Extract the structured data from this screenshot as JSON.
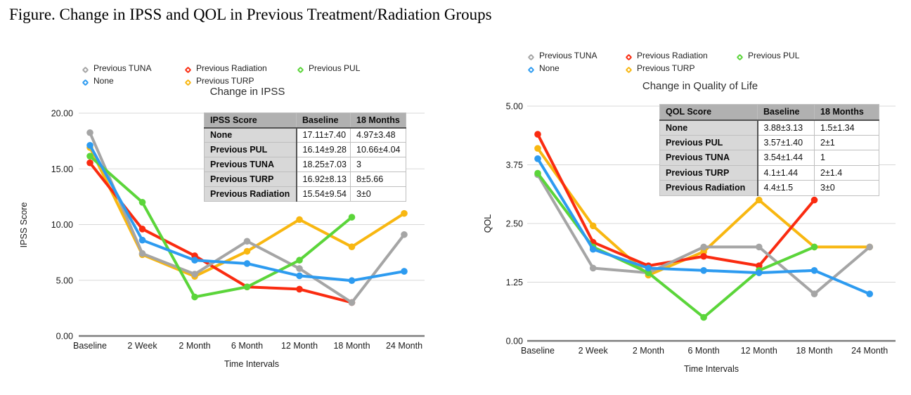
{
  "figure_title": "Figure. Change in IPSS and QOL in Previous Treatment/Radiation Groups",
  "colors": {
    "none_blue": "#2D9BF0",
    "previous_turp_orange": "#F8B711",
    "previous_pul_green": "#5BD53A",
    "previous_radiation_red": "#FA2B10",
    "previous_tuna_gray": "#A5A5A5",
    "gridline": "#D8D8D8",
    "axis": "#7D7D7D",
    "table_header_bg": "#B1B1B1",
    "table_label_bg": "#D8D8D8"
  },
  "chart_data": [
    {
      "type": "line",
      "title": "Change in IPSS",
      "xlabel": "Time Intervals",
      "ylabel": "IPSS Score",
      "categories": [
        "Baseline",
        "2 Week",
        "2 Month",
        "6 Month",
        "12 Month",
        "18 Month",
        "24 Month"
      ],
      "ylim": [
        0,
        20
      ],
      "y_ticks": [
        {
          "value": 20,
          "label": "20.00"
        },
        {
          "value": 15,
          "label": "15.00"
        },
        {
          "value": 10,
          "label": "10.00"
        },
        {
          "value": 5,
          "label": "5.00"
        },
        {
          "value": 0,
          "label": "0.00"
        }
      ],
      "grid": true,
      "legend_position": "top",
      "legend_rows": [
        [
          4,
          3,
          2
        ],
        [
          0,
          1
        ]
      ],
      "series": [
        {
          "name": "None",
          "color": "#2D9BF0",
          "values": [
            17.11,
            8.6,
            6.8,
            6.5,
            5.4,
            4.97,
            5.8
          ]
        },
        {
          "name": "Previous TURP",
          "color": "#F8B711",
          "values": [
            16.92,
            7.3,
            5.35,
            7.6,
            10.45,
            8.0,
            11.0
          ]
        },
        {
          "name": "Previous PUL",
          "color": "#5BD53A",
          "values": [
            16.14,
            12.0,
            3.5,
            4.4,
            6.8,
            10.66,
            null
          ]
        },
        {
          "name": "Previous Radiation",
          "color": "#FA2B10",
          "values": [
            15.54,
            9.6,
            7.2,
            4.4,
            4.2,
            3.0,
            null
          ]
        },
        {
          "name": "Previous TUNA",
          "color": "#A5A5A5",
          "values": [
            18.25,
            7.4,
            5.55,
            8.5,
            6.05,
            3.0,
            9.1
          ]
        }
      ],
      "table": {
        "headers": [
          "IPSS Score",
          "Baseline",
          "18 Months"
        ],
        "rows": [
          [
            "None",
            "17.11±7.40",
            "4.97±3.48"
          ],
          [
            "Previous PUL",
            "16.14±9.28",
            "10.66±4.04"
          ],
          [
            "Previous TUNA",
            "18.25±7.03",
            "3"
          ],
          [
            "Previous TURP",
            "16.92±8.13",
            "8±5.66"
          ],
          [
            "Previous Radiation",
            "15.54±9.54",
            "3±0"
          ]
        ]
      }
    },
    {
      "type": "line",
      "title": "Change in Quality of Life",
      "xlabel": "Time Intervals",
      "ylabel": "QOL",
      "categories": [
        "Baseline",
        "2 Week",
        "2 Month",
        "6 Month",
        "12 Month",
        "18 Month",
        "24 Month"
      ],
      "ylim": [
        0,
        5
      ],
      "y_ticks": [
        {
          "value": 5,
          "label": "5.00"
        },
        {
          "value": 3.75,
          "label": "3.75"
        },
        {
          "value": 2.5,
          "label": "2.50"
        },
        {
          "value": 1.25,
          "label": "1.25"
        },
        {
          "value": 0,
          "label": "0.00"
        }
      ],
      "grid": true,
      "legend_position": "top",
      "legend_rows": [
        [
          4,
          3,
          2
        ],
        [
          0,
          1
        ]
      ],
      "series": [
        {
          "name": "None",
          "color": "#2D9BF0",
          "values": [
            3.88,
            1.95,
            1.55,
            1.5,
            1.45,
            1.5,
            1.0
          ]
        },
        {
          "name": "Previous TURP",
          "color": "#F8B711",
          "values": [
            4.1,
            2.45,
            1.4,
            1.9,
            3.0,
            2.0,
            2.0
          ]
        },
        {
          "name": "Previous PUL",
          "color": "#5BD53A",
          "values": [
            3.57,
            2.0,
            1.45,
            0.5,
            1.5,
            2.0,
            null
          ]
        },
        {
          "name": "Previous Radiation",
          "color": "#FA2B10",
          "values": [
            4.4,
            2.1,
            1.6,
            1.8,
            1.6,
            3.0,
            null
          ]
        },
        {
          "name": "Previous TUNA",
          "color": "#A5A5A5",
          "values": [
            3.54,
            1.55,
            1.45,
            2.0,
            2.0,
            1.0,
            2.0
          ]
        }
      ],
      "table": {
        "headers": [
          "QOL Score",
          "Baseline",
          "18 Months"
        ],
        "rows": [
          [
            "None",
            "3.88±3.13",
            "1.5±1.34"
          ],
          [
            "Previous PUL",
            "3.57±1.40",
            "2±1"
          ],
          [
            "Previous TUNA",
            "3.54±1.44",
            "1"
          ],
          [
            "Previous TURP",
            "4.1±1.44",
            "2±1.4"
          ],
          [
            "Previous Radiation",
            "4.4±1.5",
            "3±0"
          ]
        ]
      }
    }
  ]
}
